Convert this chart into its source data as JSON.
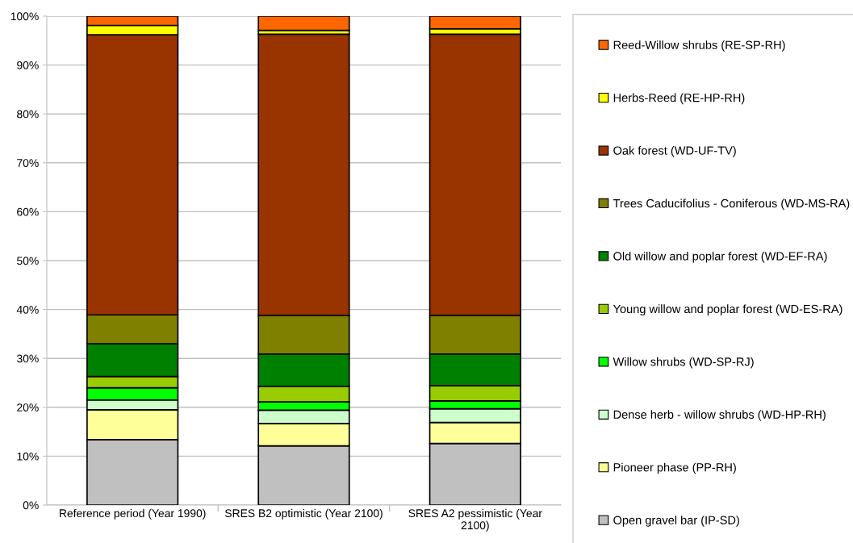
{
  "chart_data": {
    "type": "bar",
    "stacked": true,
    "categories": [
      "Reference period (Year 1990)",
      "SRES B2 optimistic (Year 2100)",
      "SRES A2 pessimistic (Year\n2100)"
    ],
    "series": [
      {
        "name": "Open gravel bar (IP-SD)",
        "color": "#c0c0c0",
        "values": [
          13.4,
          12.1,
          12.6
        ]
      },
      {
        "name": "Pioneer phase (PP-RH)",
        "color": "#ffff99",
        "values": [
          6.1,
          4.6,
          4.3
        ]
      },
      {
        "name": "Dense herb - willow shrubs (WD-HP-RH)",
        "color": "#ccffcc",
        "values": [
          2.0,
          2.7,
          2.8
        ]
      },
      {
        "name": "Willow shrubs (WD-SP-RJ)",
        "color": "#00ff00",
        "values": [
          2.5,
          1.7,
          1.6
        ]
      },
      {
        "name": "Young willow and poplar forest (WD-ES-RA)",
        "color": "#99cc00",
        "values": [
          2.3,
          3.2,
          3.1
        ]
      },
      {
        "name": "Old willow and poplar forest (WD-EF-RA)",
        "color": "#008000",
        "values": [
          6.7,
          6.6,
          6.5
        ]
      },
      {
        "name": "Trees Caducifolius - Coniferous (WD-MS-RA)",
        "color": "#808000",
        "values": [
          5.9,
          7.9,
          7.9
        ]
      },
      {
        "name": "Oak forest (WD-UF-TV)",
        "color": "#993300",
        "values": [
          57.3,
          57.5,
          57.5
        ]
      },
      {
        "name": "Herbs-Reed (RE-HP-RH)",
        "color": "#ffff00",
        "values": [
          1.9,
          0.8,
          1.1
        ]
      },
      {
        "name": "Reed-Willow shrubs (RE-SP-RH)",
        "color": "#ff6600",
        "values": [
          1.9,
          2.9,
          2.6
        ]
      }
    ],
    "ylim": [
      0,
      100
    ],
    "yticks": [
      {
        "value": 0,
        "label": "0%"
      },
      {
        "value": 10,
        "label": "10%"
      },
      {
        "value": 20,
        "label": "20%"
      },
      {
        "value": 30,
        "label": "30%"
      },
      {
        "value": 40,
        "label": "40%"
      },
      {
        "value": 50,
        "label": "50%"
      },
      {
        "value": 60,
        "label": "60%"
      },
      {
        "value": 70,
        "label": "70%"
      },
      {
        "value": 80,
        "label": "80%"
      },
      {
        "value": 90,
        "label": "90%"
      },
      {
        "value": 100,
        "label": "100%"
      }
    ],
    "grid": "y",
    "legend": "right"
  }
}
